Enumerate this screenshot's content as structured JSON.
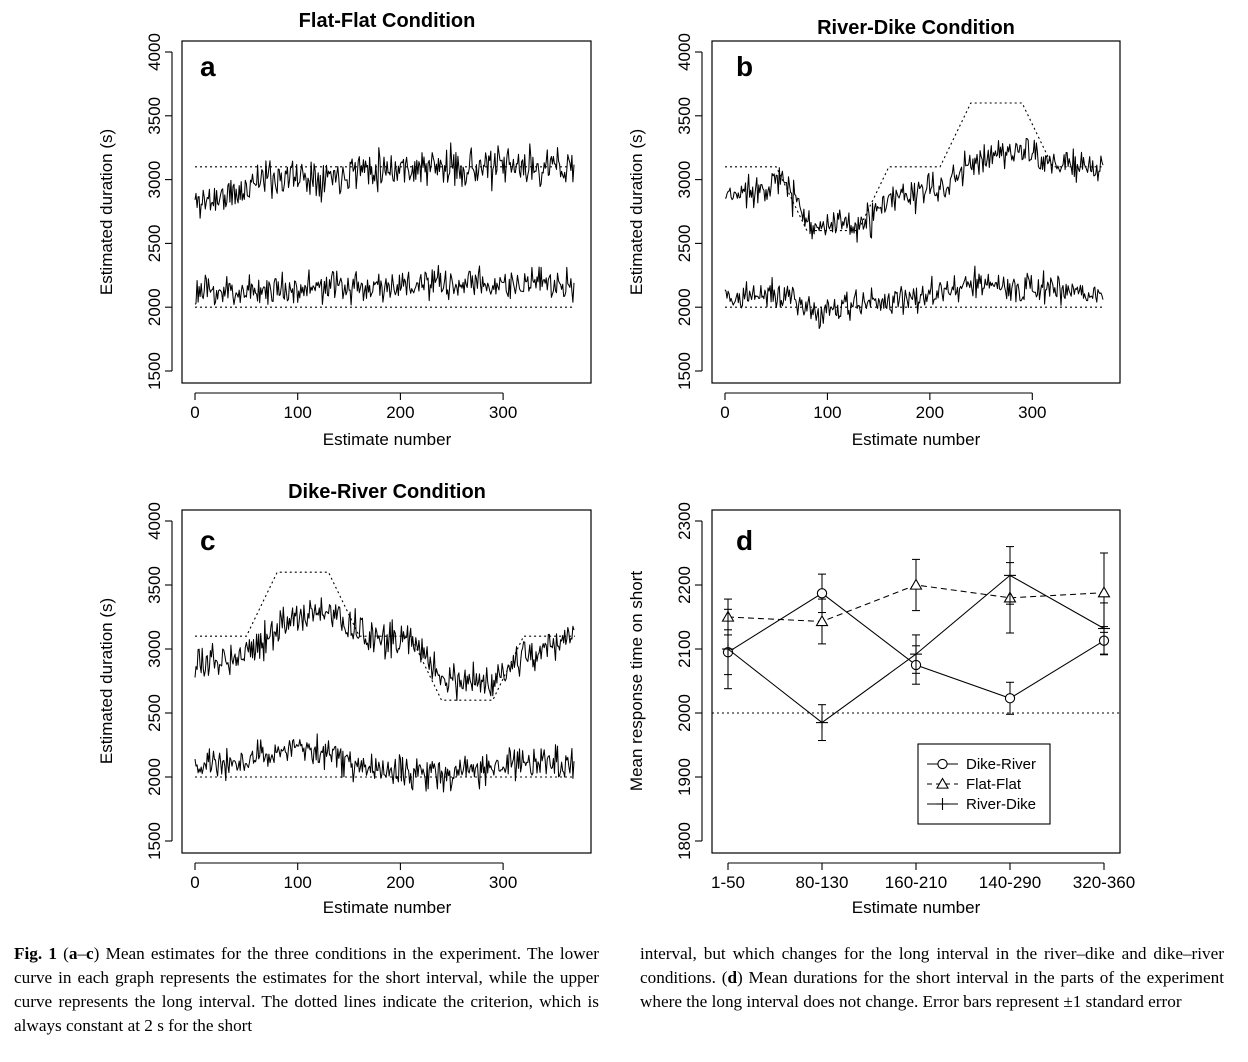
{
  "chart_data": [
    {
      "type": "line",
      "letter": "a",
      "title": "Flat-Flat Condition",
      "xlabel": "Estimate number",
      "ylabel": "Estimated duration (s)",
      "xlim": [
        0,
        370
      ],
      "ylim": [
        1500,
        4000
      ],
      "xticks": [
        0,
        100,
        200,
        300
      ],
      "yticks": [
        1500,
        2000,
        2500,
        3000,
        3500,
        4000
      ],
      "grid": false,
      "criterion": [
        {
          "x": [
            0,
            370
          ],
          "y": [
            3100,
            3100
          ]
        },
        {
          "x": [
            0,
            370
          ],
          "y": [
            2000,
            2000
          ]
        }
      ],
      "series": [
        {
          "key": "long",
          "n": 370,
          "noise": 95,
          "seed": 11,
          "trend": {
            "x": [
              0,
              50,
              55,
              145,
              150,
              370
            ],
            "y": [
              2820,
              2900,
              3010,
              3040,
              3090,
              3100
            ]
          }
        },
        {
          "key": "short",
          "n": 370,
          "noise": 80,
          "seed": 23,
          "trend": {
            "x": [
              0,
              100,
              200,
              300,
              370
            ],
            "y": [
              2110,
              2150,
              2170,
              2180,
              2170
            ]
          }
        }
      ]
    },
    {
      "type": "line",
      "letter": "b",
      "title": "River-Dike Condition",
      "xlabel": "Estimate number",
      "ylabel": "Estimated duration (s)",
      "xlim": [
        0,
        370
      ],
      "ylim": [
        1500,
        4000
      ],
      "xticks": [
        0,
        100,
        200,
        300
      ],
      "yticks": [
        1500,
        2000,
        2500,
        3000,
        3500,
        4000
      ],
      "grid": false,
      "criterion": [
        {
          "x": [
            0,
            50,
            80,
            130,
            160,
            210,
            240,
            290,
            320,
            370
          ],
          "y": [
            3100,
            3100,
            2600,
            2600,
            3100,
            3100,
            3600,
            3600,
            3100,
            3100
          ]
        },
        {
          "x": [
            0,
            370
          ],
          "y": [
            2000,
            2000
          ]
        }
      ],
      "series": [
        {
          "key": "long",
          "n": 370,
          "noise": 80,
          "seed": 37,
          "trend": {
            "x": [
              0,
              55,
              85,
              130,
              165,
              215,
              245,
              290,
              320,
              370
            ],
            "y": [
              2850,
              3000,
              2650,
              2620,
              2850,
              2950,
              3150,
              3250,
              3120,
              3080
            ]
          }
        },
        {
          "key": "short",
          "n": 370,
          "noise": 75,
          "seed": 41,
          "trend": {
            "x": [
              0,
              60,
              85,
              130,
              200,
              250,
              290,
              370
            ],
            "y": [
              2080,
              2100,
              1960,
              2010,
              2100,
              2180,
              2150,
              2100
            ]
          }
        }
      ]
    },
    {
      "type": "line",
      "letter": "c",
      "title": "Dike-River Condition",
      "xlabel": "Estimate number",
      "ylabel": "Estimated duration (s)",
      "xlim": [
        0,
        370
      ],
      "ylim": [
        1500,
        4000
      ],
      "xticks": [
        0,
        100,
        200,
        300
      ],
      "yticks": [
        1500,
        2000,
        2500,
        3000,
        3500,
        4000
      ],
      "grid": false,
      "criterion": [
        {
          "x": [
            0,
            50,
            80,
            130,
            160,
            210,
            240,
            290,
            320,
            370
          ],
          "y": [
            3100,
            3100,
            3600,
            3600,
            3100,
            3100,
            2600,
            2600,
            3100,
            3100
          ]
        },
        {
          "x": [
            0,
            370
          ],
          "y": [
            2000,
            2000
          ]
        }
      ],
      "series": [
        {
          "key": "long",
          "n": 370,
          "noise": 85,
          "seed": 53,
          "trend": {
            "x": [
              0,
              55,
              85,
              130,
              165,
              215,
              245,
              290,
              320,
              370
            ],
            "y": [
              2850,
              3000,
              3200,
              3300,
              3100,
              3050,
              2750,
              2720,
              2950,
              3080
            ]
          }
        },
        {
          "key": "short",
          "n": 370,
          "noise": 80,
          "seed": 67,
          "trend": {
            "x": [
              0,
              50,
              80,
              130,
              160,
              210,
              250,
              290,
              370
            ],
            "y": [
              2080,
              2130,
              2200,
              2190,
              2080,
              2040,
              2040,
              2080,
              2120
            ]
          }
        }
      ]
    },
    {
      "type": "line",
      "letter": "d",
      "title": "",
      "xlabel": "Estimate number",
      "ylabel": "Mean response time on short",
      "categories": [
        "1-50",
        "80-130",
        "160-210",
        "140-290",
        "320-360"
      ],
      "ylim": [
        1800,
        2300
      ],
      "yticks": [
        1800,
        1900,
        2000,
        2100,
        2200,
        2300
      ],
      "grid": false,
      "criterion": [
        {
          "y": 2000
        }
      ],
      "legend_position": "bottom-right",
      "series": [
        {
          "name": "Dike-River",
          "marker": "circle",
          "dash": "solid",
          "values": [
            2095,
            2187,
            2075,
            2023,
            2113
          ],
          "se": [
            35,
            30,
            30,
            25,
            22
          ]
        },
        {
          "name": "Flat-Flat",
          "marker": "triangle",
          "dash": "dashed",
          "values": [
            2150,
            2143,
            2200,
            2180,
            2188
          ],
          "se": [
            28,
            35,
            40,
            55,
            62
          ]
        },
        {
          "name": "River-Dike",
          "marker": "plus",
          "dash": "solid",
          "values": [
            2100,
            1985,
            2092,
            2215,
            2132
          ],
          "se": [
            62,
            28,
            30,
            45,
            40
          ]
        }
      ]
    }
  ],
  "caption": {
    "left": [
      {
        "bold": "Fig. 1",
        "text": "  ("
      },
      {
        "bold": "a",
        "text": "–"
      },
      {
        "bold": "c",
        "text": ") Mean estimates for the three conditions in the experiment. The lower curve in each graph represents the estimates for the short interval, while the upper curve represents the long interval. The dotted lines indicate the criterion, which is always constant at 2 s for the short"
      }
    ],
    "right": [
      {
        "bold": "",
        "text": "interval, but which changes for the long interval in the river–dike and dike–river conditions. ("
      },
      {
        "bold": "d",
        "text": ") Mean durations for the short interval in the parts of the experiment where the long interval does not change. Error bars represent ±1 standard error"
      }
    ]
  }
}
